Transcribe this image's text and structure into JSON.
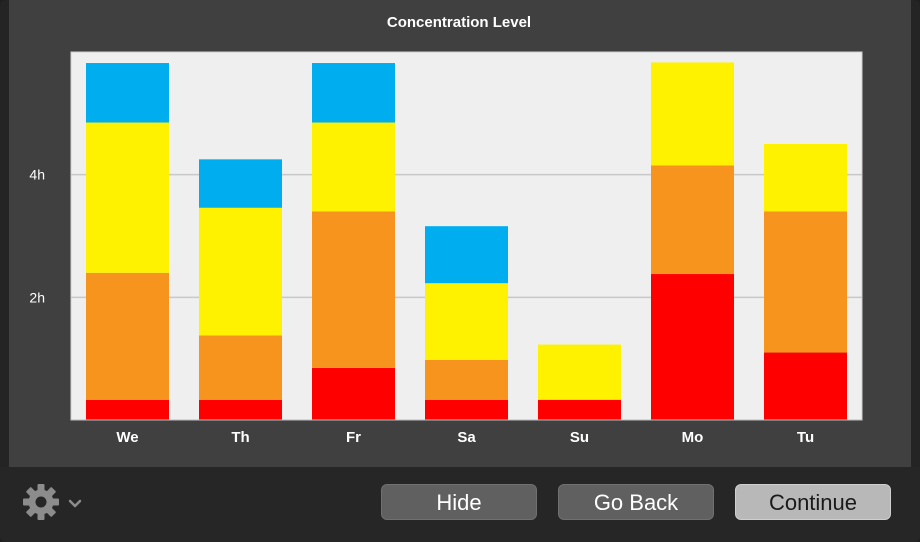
{
  "chart_data": {
    "type": "bar",
    "stacked": true,
    "title": "Concentration Level",
    "categories": [
      "We",
      "Th",
      "Fr",
      "Sa",
      "Su",
      "Mo",
      "Tu"
    ],
    "y_ticks": [
      {
        "value": 2,
        "label": "2h"
      },
      {
        "value": 4,
        "label": "4h"
      }
    ],
    "ylim": [
      0,
      6
    ],
    "grid": true,
    "series": [
      {
        "color": "#ff0000",
        "values": [
          0.33,
          0.33,
          0.85,
          0.33,
          0.33,
          2.38,
          1.1
        ]
      },
      {
        "color": "#f7941d",
        "values": [
          2.07,
          1.05,
          2.55,
          0.65,
          0.0,
          1.77,
          2.3
        ]
      },
      {
        "color": "#fff200",
        "values": [
          2.45,
          2.08,
          1.45,
          1.25,
          0.9,
          1.68,
          1.1
        ]
      },
      {
        "color": "#00aeef",
        "values": [
          0.97,
          0.79,
          0.97,
          0.93,
          0.0,
          0.0,
          0.0
        ]
      }
    ]
  },
  "footer": {
    "settings_icon": "gear-icon",
    "dropdown_icon": "chevron-down-icon",
    "hide_label": "Hide",
    "go_back_label": "Go Back",
    "continue_label": "Continue"
  }
}
